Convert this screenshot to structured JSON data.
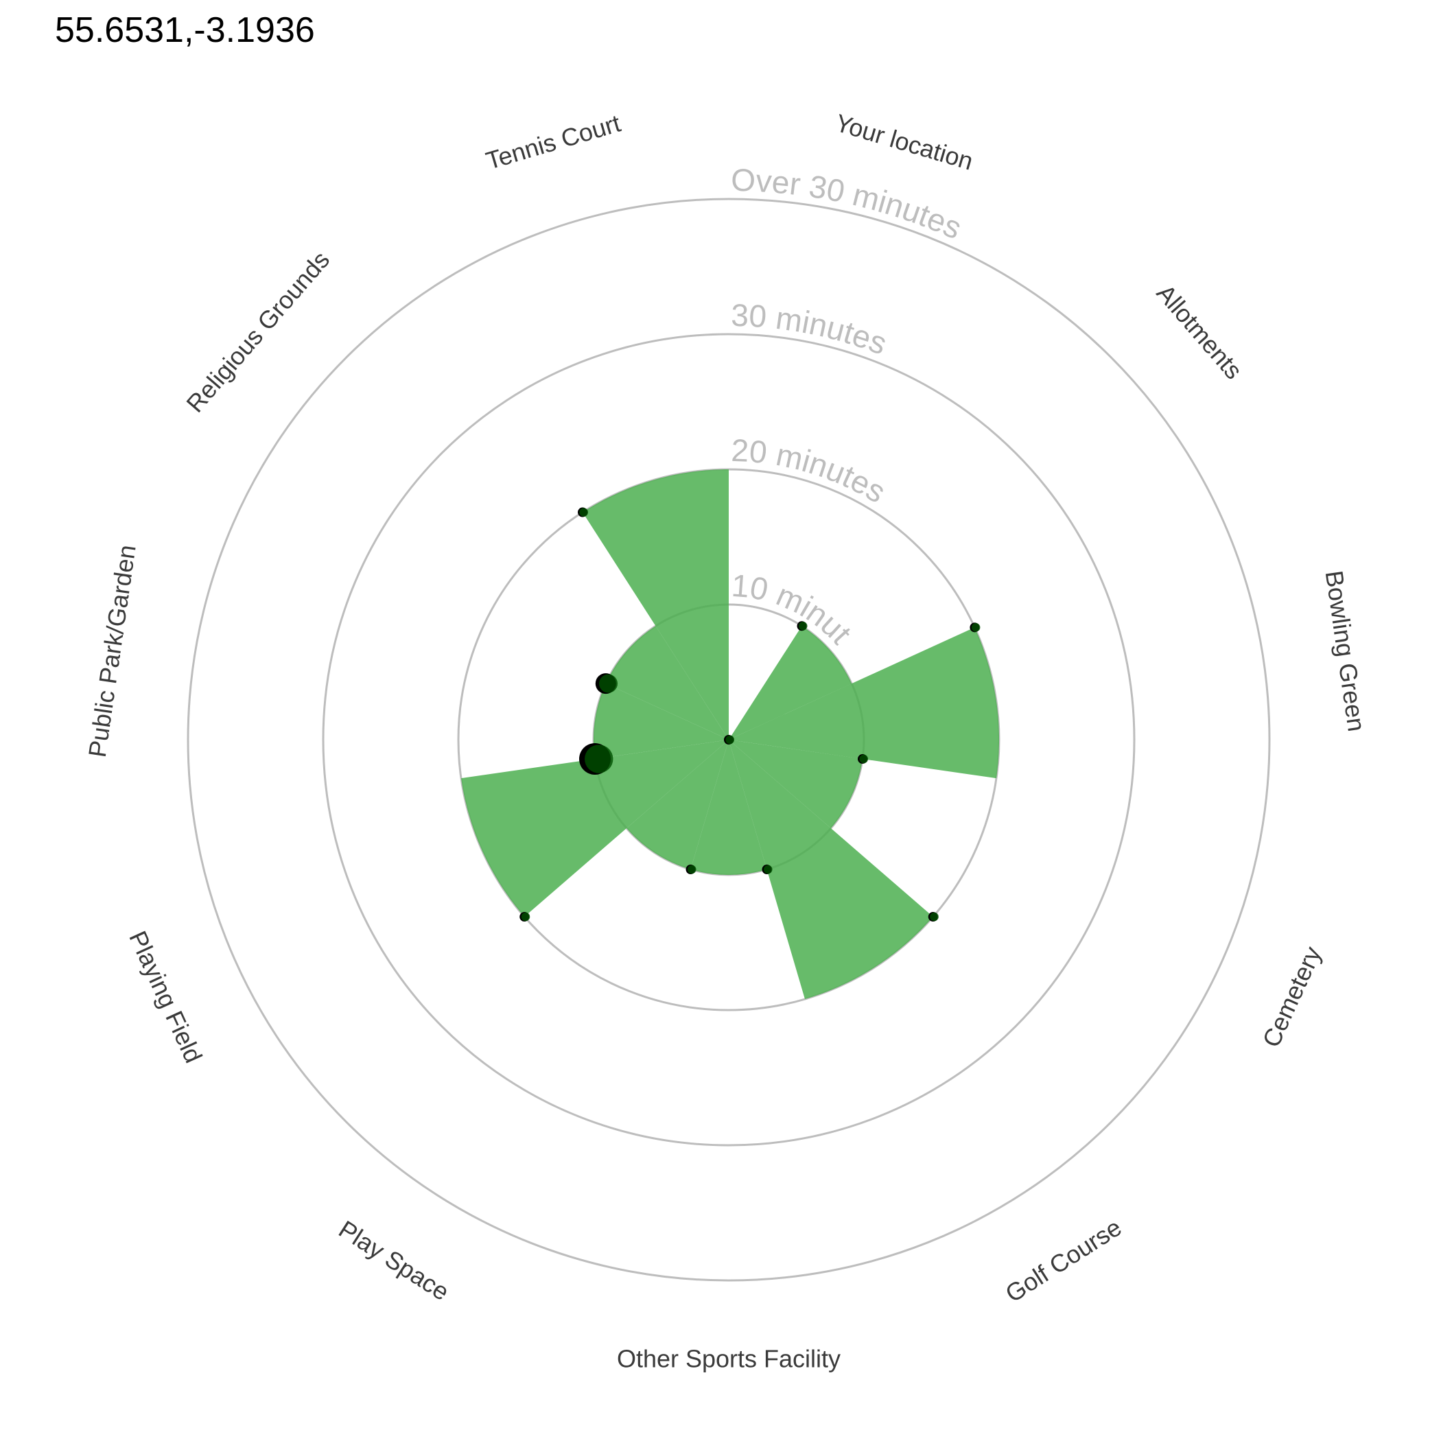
{
  "chart_data": {
    "type": "polar-area",
    "title": "55.6531,-3.1936",
    "categories": [
      "Your location",
      "Allotments",
      "Bowling Green",
      "Cemetery",
      "Golf Course",
      "Other Sports Facility",
      "Play Space",
      "Playing Field",
      "Public Park/Garden",
      "Religious Grounds",
      "Tennis Court"
    ],
    "values": [
      0,
      10,
      20,
      10,
      20,
      10,
      10,
      20,
      10,
      10,
      20
    ],
    "point_sizes": [
      1,
      1,
      1,
      1,
      1,
      1,
      1,
      1,
      3,
      2,
      1
    ],
    "radial_ticks": [
      "10 minutes",
      "20 minutes",
      "30 minutes",
      "Over 30 minutes"
    ],
    "radial_tick_values": [
      10,
      20,
      30,
      40
    ],
    "rmax": 40,
    "grid": true,
    "legend": "none",
    "colors": {
      "fill": "#4caf50",
      "point": "#000000",
      "point_inner": "#005000",
      "grid": "#bdbdbd",
      "ring_label": "#bdbdbd",
      "category_label": "#3a3a3a"
    }
  }
}
